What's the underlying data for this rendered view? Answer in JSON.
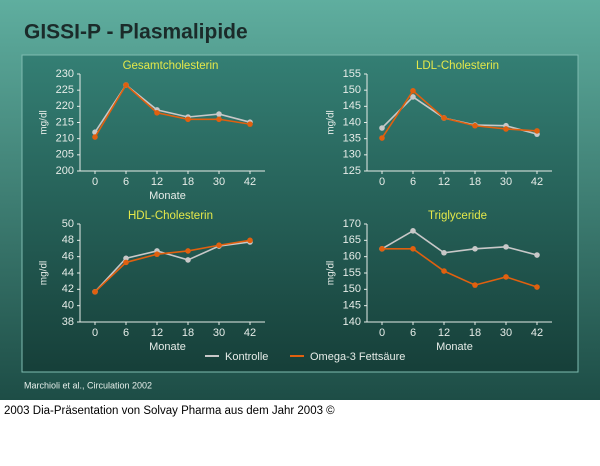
{
  "title": "GISSI-P - Plasmalipide",
  "source": "Marchioli et al., Circulation 2002",
  "caption": "2003 Dia-Präsentation von Solvay Pharma aus dem Jahr 2003 ©",
  "chart_data": [
    {
      "type": "line",
      "title": "Gesamtcholesterin",
      "y_label": "mg/dl",
      "x_label": "Monate",
      "categories": [
        "0",
        "6",
        "12",
        "18",
        "30",
        "42"
      ],
      "ylim": [
        200,
        230
      ],
      "yticks": [
        200,
        205,
        210,
        215,
        220,
        225,
        230
      ],
      "series": [
        {
          "name": "Kontrolle",
          "color": "#c8c8c8",
          "values": [
            212,
            226.6,
            218.9,
            216.7,
            217.6,
            215.1
          ]
        },
        {
          "name": "Omega-3 Fettsäure",
          "color": "#e0600f",
          "values": [
            210.5,
            226.6,
            218,
            216,
            216,
            214.5
          ]
        }
      ]
    },
    {
      "type": "line",
      "title": "LDL-Cholesterin",
      "y_label": "mg/dl",
      "categories": [
        "0",
        "6",
        "12",
        "18",
        "30",
        "42"
      ],
      "ylim": [
        125,
        155
      ],
      "yticks": [
        125,
        130,
        135,
        140,
        145,
        150,
        155
      ],
      "series": [
        {
          "color": "#c8c8c8",
          "values": [
            138.3,
            147.9,
            141.4,
            139.2,
            139,
            136.4
          ]
        },
        {
          "color": "#e0600f",
          "values": [
            135.2,
            149.8,
            141.4,
            139,
            138,
            137.4
          ]
        }
      ]
    },
    {
      "type": "line",
      "title": "HDL-Cholesterin",
      "y_label": "mg/dl",
      "x_label": "Monate",
      "categories": [
        "0",
        "6",
        "12",
        "18",
        "30",
        "42"
      ],
      "ylim": [
        38,
        50
      ],
      "yticks": [
        38,
        40,
        42,
        44,
        46,
        48,
        50
      ],
      "series": [
        {
          "color": "#c8c8c8",
          "values": [
            41.7,
            45.8,
            46.7,
            45.6,
            47.3,
            47.8
          ]
        },
        {
          "color": "#e0600f",
          "values": [
            41.7,
            45.3,
            46.3,
            46.7,
            47.4,
            48
          ]
        }
      ]
    },
    {
      "type": "line",
      "title": "Triglyceride",
      "y_label": "mg/dl",
      "x_label": "Monate",
      "categories": [
        "0",
        "6",
        "12",
        "18",
        "30",
        "42"
      ],
      "ylim": [
        140,
        170
      ],
      "yticks": [
        140,
        145,
        150,
        155,
        160,
        165,
        170
      ],
      "series": [
        {
          "color": "#c8c8c8",
          "values": [
            162.4,
            167.9,
            161.2,
            162.4,
            163,
            160.5
          ]
        },
        {
          "color": "#e0600f",
          "values": [
            162.4,
            162.4,
            155.6,
            151.3,
            153.8,
            150.7
          ]
        }
      ]
    }
  ]
}
